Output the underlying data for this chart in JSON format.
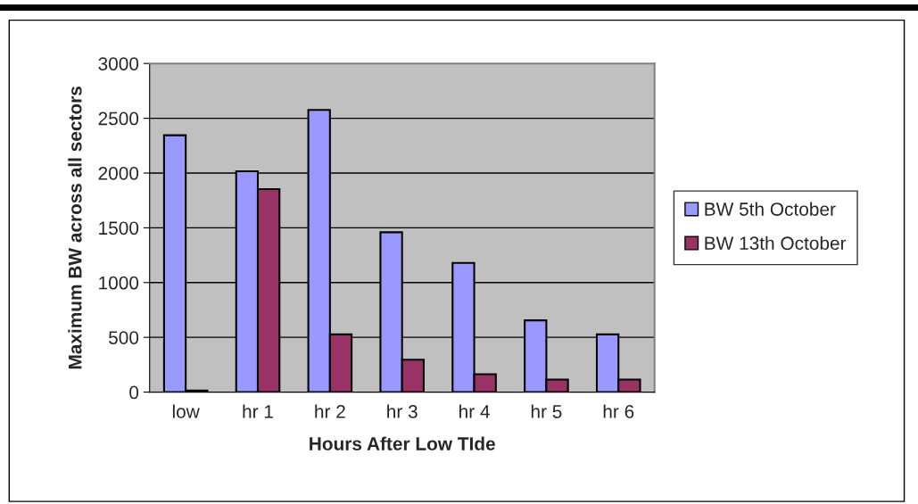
{
  "chart_data": {
    "type": "bar",
    "xlabel": "Hours After Low TIde",
    "ylabel": "Maximum BW across all sectors",
    "categories": [
      "low",
      "hr 1",
      "hr 2",
      "hr 3",
      "hr 4",
      "hr 5",
      "hr 6"
    ],
    "series": [
      {
        "name": "BW 5th October",
        "color": "#9999ff",
        "values": [
          2345,
          2016,
          2576,
          1459,
          1179,
          655,
          527
        ]
      },
      {
        "name": "BW 13th October",
        "color": "#993366",
        "values": [
          14,
          1853,
          527,
          296,
          163,
          114,
          114
        ]
      }
    ],
    "ylim": [
      0,
      3000
    ],
    "yticks": [
      0,
      500,
      1000,
      1500,
      2000,
      2500,
      3000
    ],
    "grid": "y",
    "legend": "right"
  }
}
